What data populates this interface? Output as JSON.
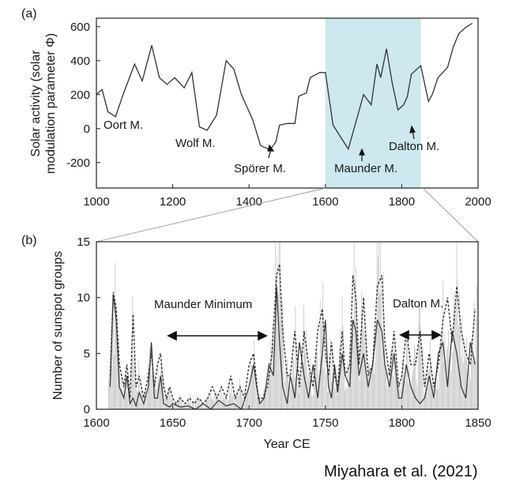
{
  "credit": "Miyahara et al. (2021)",
  "colors": {
    "highlight": "#cde8ee",
    "line": "#333333",
    "spike": "#bfbfbf",
    "axis": "#222222"
  },
  "chart_data": [
    {
      "panel": "(a)",
      "type": "line",
      "ylabel_line1": "Solar activity (solar",
      "ylabel_line2": "modulation parameter Φ)",
      "xlim": [
        1000,
        2000
      ],
      "ylim": [
        -350,
        650
      ],
      "xticks": [
        1000,
        1200,
        1400,
        1600,
        1800,
        2000
      ],
      "yticks": [
        -200,
        0,
        200,
        400,
        600
      ],
      "highlight_span": [
        1600,
        1850
      ],
      "grid": false,
      "series": [
        {
          "x": [
            1000,
            1015,
            1030,
            1050,
            1070,
            1100,
            1120,
            1145,
            1165,
            1185,
            1205,
            1230,
            1250,
            1270,
            1290,
            1315,
            1340,
            1360,
            1380,
            1410,
            1430,
            1455,
            1470,
            1480,
            1500,
            1520,
            1530,
            1550,
            1560,
            1585,
            1600,
            1620,
            1640,
            1660,
            1685,
            1700,
            1720,
            1735,
            1745,
            1760,
            1775,
            1790,
            1805,
            1815,
            1825,
            1850,
            1870,
            1880,
            1895,
            1920,
            1935,
            1950,
            1970,
            1985
          ],
          "y": [
            200,
            230,
            100,
            70,
            200,
            380,
            280,
            490,
            300,
            260,
            300,
            240,
            330,
            10,
            -10,
            80,
            400,
            350,
            200,
            50,
            -100,
            -125,
            -80,
            20,
            30,
            30,
            190,
            210,
            300,
            330,
            330,
            20,
            -50,
            -120,
            80,
            200,
            140,
            380,
            300,
            470,
            270,
            110,
            140,
            190,
            320,
            370,
            160,
            200,
            300,
            360,
            480,
            560,
            600,
            620
          ]
        }
      ],
      "annotations": [
        "Oort M.",
        "Wolf M.",
        "Spörer M.",
        "Maunder M.",
        "Dalton M."
      ]
    },
    {
      "panel": "(b)",
      "type": "line",
      "xlabel": "Year CE",
      "ylabel": "Number of sunspot groups",
      "xlim": [
        1600,
        1850
      ],
      "ylim": [
        0,
        15
      ],
      "xticks": [
        1600,
        1650,
        1700,
        1750,
        1800,
        1850
      ],
      "yticks": [
        0,
        5,
        10,
        15
      ],
      "grid": false,
      "series": [
        {
          "style": "solid",
          "x": [
            1609,
            1611,
            1613,
            1615,
            1618,
            1620,
            1622,
            1624,
            1626,
            1628,
            1631,
            1634,
            1636,
            1638,
            1640,
            1642,
            1644,
            1648,
            1650,
            1655,
            1660,
            1665,
            1670,
            1675,
            1680,
            1685,
            1690,
            1695,
            1700,
            1703,
            1705,
            1707,
            1710,
            1713,
            1716,
            1718,
            1720,
            1722,
            1725,
            1727,
            1730,
            1733,
            1736,
            1739,
            1742,
            1745,
            1748,
            1750,
            1752,
            1754,
            1756,
            1758,
            1761,
            1763,
            1766,
            1768,
            1770,
            1772,
            1775,
            1778,
            1781,
            1784,
            1787,
            1789,
            1792,
            1795,
            1798,
            1800,
            1803,
            1806,
            1809,
            1812,
            1815,
            1818,
            1821,
            1824,
            1827,
            1830,
            1833,
            1836,
            1839,
            1842,
            1845,
            1848
          ],
          "y": [
            2,
            10.3,
            8,
            2,
            1,
            3,
            0.5,
            1,
            0.3,
            1.5,
            0.5,
            2,
            6,
            1,
            1,
            3,
            0.5,
            0.2,
            0.5,
            0.2,
            0.3,
            0,
            0.5,
            0,
            0.8,
            0.3,
            0.5,
            0,
            2,
            4,
            2,
            0.5,
            1,
            4,
            3,
            11,
            6,
            2,
            0.5,
            3,
            1,
            6,
            3,
            1,
            4,
            1,
            5,
            8,
            2,
            1,
            4,
            1.5,
            5,
            3,
            2,
            8,
            7,
            3,
            5,
            2,
            4,
            8,
            7,
            4,
            2,
            5,
            1,
            1,
            4,
            2,
            1,
            0.5,
            1,
            3,
            1,
            5,
            6,
            2,
            7,
            5,
            2,
            1,
            6,
            4
          ]
        },
        {
          "style": "dashed",
          "x": [
            1609,
            1611,
            1613,
            1615,
            1618,
            1620,
            1622,
            1624,
            1626,
            1628,
            1631,
            1634,
            1636,
            1638,
            1640,
            1642,
            1644,
            1646,
            1648,
            1650,
            1652,
            1655,
            1658,
            1661,
            1664,
            1667,
            1670,
            1673,
            1676,
            1679,
            1682,
            1685,
            1688,
            1691,
            1694,
            1697,
            1700,
            1703,
            1706,
            1709,
            1712,
            1715,
            1718,
            1720,
            1722,
            1725,
            1727,
            1730,
            1733,
            1736,
            1739,
            1742,
            1745,
            1748,
            1750,
            1752,
            1754,
            1756,
            1758,
            1761,
            1763,
            1766,
            1768,
            1770,
            1772,
            1775,
            1778,
            1781,
            1784,
            1787,
            1789,
            1792,
            1795,
            1798,
            1800,
            1803,
            1806,
            1809,
            1812,
            1815,
            1818,
            1821,
            1824,
            1827,
            1830,
            1833,
            1836,
            1839,
            1842,
            1845,
            1848
          ],
          "y": [
            3,
            10.5,
            9,
            4,
            2,
            4,
            1,
            8.5,
            2,
            3,
            1,
            3,
            5,
            2,
            4,
            5,
            2,
            1,
            2,
            1,
            0.5,
            1,
            0.5,
            1,
            0.5,
            1,
            0.5,
            1,
            2,
            1,
            2,
            1,
            3,
            1,
            2,
            1,
            4,
            5,
            1,
            1,
            2,
            5,
            12,
            13,
            7,
            3,
            3,
            7,
            2,
            7,
            4,
            2,
            7,
            9,
            5,
            3,
            6,
            3,
            2,
            7,
            3,
            4,
            12,
            10,
            4,
            10,
            3,
            4,
            11,
            12,
            6,
            3,
            7,
            2,
            3,
            7,
            4,
            4,
            7,
            2,
            5,
            2,
            4,
            8,
            10,
            6,
            11,
            7,
            5,
            4,
            9
          ]
        }
      ],
      "annotations": [
        "Maunder Minimum",
        "Dalton M."
      ]
    }
  ]
}
